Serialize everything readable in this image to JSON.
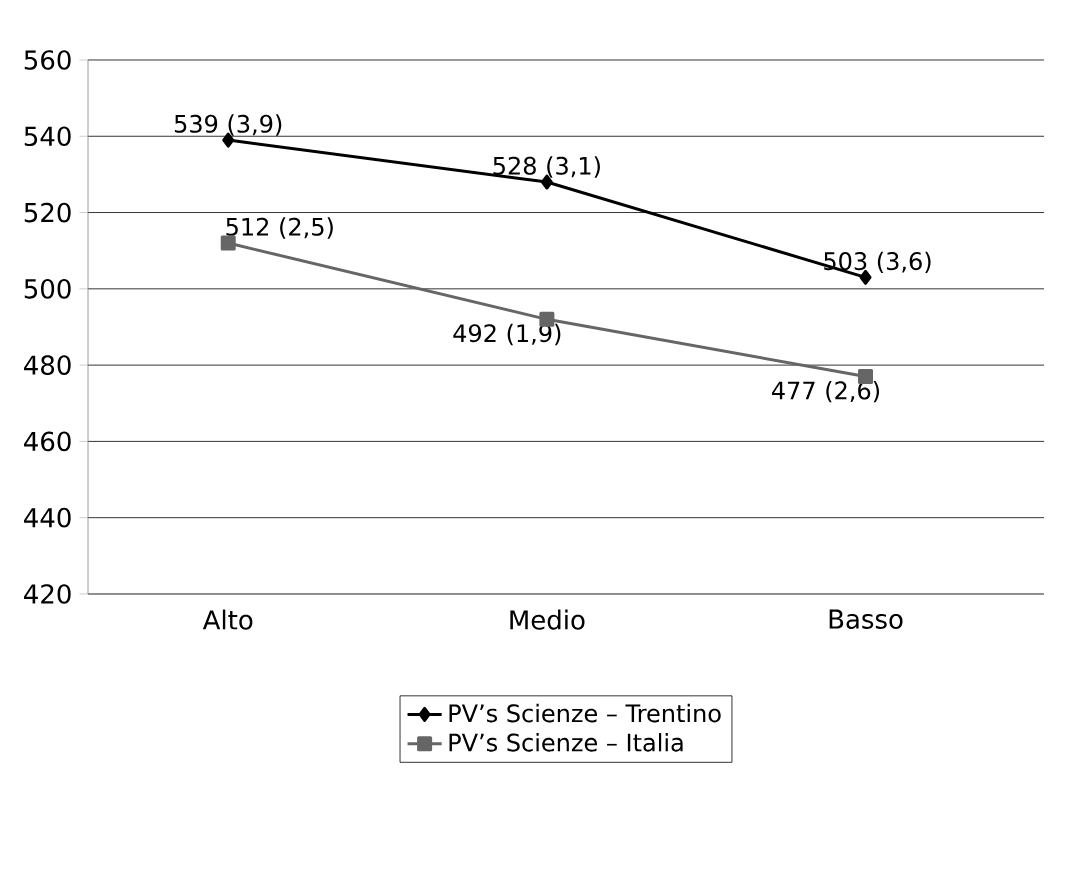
{
  "chart_data": {
    "type": "line",
    "categories": [
      "Alto",
      "Medio",
      "Basso"
    ],
    "series": [
      {
        "name": "PV’s Scienze – Trentino",
        "color": "#000000",
        "marker": "diamond",
        "values": [
          539,
          528,
          503
        ],
        "value_labels": [
          "539 (3,9)",
          "528 (3,1)",
          "503 (3,6)"
        ]
      },
      {
        "name": "PV’s Scienze – Italia",
        "color": "#666666",
        "marker": "square",
        "values": [
          512,
          492,
          477
        ],
        "value_labels": [
          "512 (2,5)",
          "492 (1,9)",
          "477 (2,6)"
        ]
      }
    ],
    "ylim": [
      420,
      560
    ],
    "yticks": [
      420,
      440,
      460,
      480,
      500,
      520,
      540,
      560
    ],
    "grid": "y",
    "legend": "bottom",
    "line_style": "solid"
  }
}
